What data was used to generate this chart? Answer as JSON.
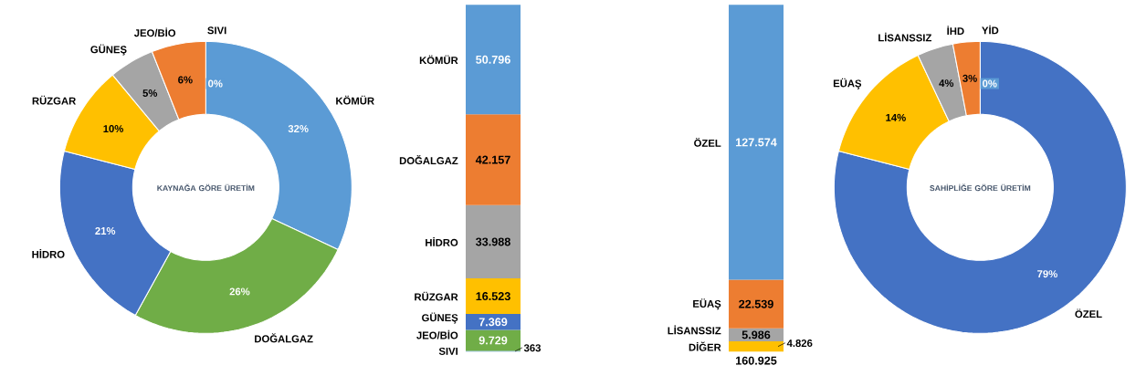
{
  "chart_data": [
    {
      "type": "donut",
      "title": "KAYNAĞA GÖRE ÜRETİM",
      "categories": [
        "KÖMÜR",
        "DOĞALGAZ",
        "HİDRO",
        "RÜZGAR",
        "GÜNEŞ",
        "JEO/BİO",
        "SIVI"
      ],
      "values": [
        32,
        26,
        21,
        10,
        5,
        6,
        0
      ],
      "value_labels": [
        "32%",
        "26%",
        "21%",
        "10%",
        "5%",
        "6%",
        "0%"
      ],
      "colors": [
        "#5b9bd5",
        "#70ad47",
        "#4472c4",
        "#ffc000",
        "#a5a5a5",
        "#ed7d31",
        "#5b9bd5"
      ]
    },
    {
      "type": "bar",
      "stacked": true,
      "categories": [
        null
      ],
      "series": [
        {
          "name": "SIVI",
          "color": "#5b9bd5",
          "values": [
            363
          ],
          "value_labels": [
            "363"
          ]
        },
        {
          "name": "JEO/BİO",
          "color": "#70ad47",
          "values": [
            9729
          ],
          "value_labels": [
            "9.729"
          ]
        },
        {
          "name": "GÜNEŞ",
          "color": "#4472c4",
          "values": [
            7369
          ],
          "value_labels": [
            "7.369"
          ]
        },
        {
          "name": "RÜZGAR",
          "color": "#ffc000",
          "values": [
            16523
          ],
          "value_labels": [
            "16.523"
          ]
        },
        {
          "name": "HİDRO",
          "color": "#a5a5a5",
          "values": [
            33988
          ],
          "value_labels": [
            "33.988"
          ]
        },
        {
          "name": "DOĞALGAZ",
          "color": "#ed7d31",
          "values": [
            42157
          ],
          "value_labels": [
            "42.157"
          ]
        },
        {
          "name": "KÖMÜR",
          "color": "#5b9bd5",
          "values": [
            50796
          ],
          "value_labels": [
            "50.796"
          ]
        }
      ]
    },
    {
      "type": "bar",
      "stacked": true,
      "categories": [
        null
      ],
      "totals": [
        "160.925"
      ],
      "series": [
        {
          "name": "DİĞER",
          "color": "#ffc000",
          "values": [
            4826
          ],
          "value_labels": [
            "4.826"
          ]
        },
        {
          "name": "LİSANSSIZ",
          "color": "#a5a5a5",
          "values": [
            5986
          ],
          "value_labels": [
            "5.986"
          ]
        },
        {
          "name": "EÜAŞ",
          "color": "#ed7d31",
          "values": [
            22539
          ],
          "value_labels": [
            "22.539"
          ]
        },
        {
          "name": "ÖZEL",
          "color": "#5b9bd5",
          "values": [
            127574
          ],
          "value_labels": [
            "127.574"
          ]
        }
      ]
    },
    {
      "type": "donut",
      "title": "SAHİPLİĞE GÖRE ÜRETİM",
      "categories": [
        "ÖZEL",
        "EÜAŞ",
        "LİSANSSIZ",
        "İHD",
        "YİD"
      ],
      "values": [
        79,
        14,
        4,
        3,
        0
      ],
      "value_labels": [
        "79%",
        "14%",
        "4%",
        "3%",
        "0%"
      ],
      "colors": [
        "#4472c4",
        "#ffc000",
        "#a5a5a5",
        "#ed7d31",
        "#5b9bd5"
      ]
    }
  ]
}
